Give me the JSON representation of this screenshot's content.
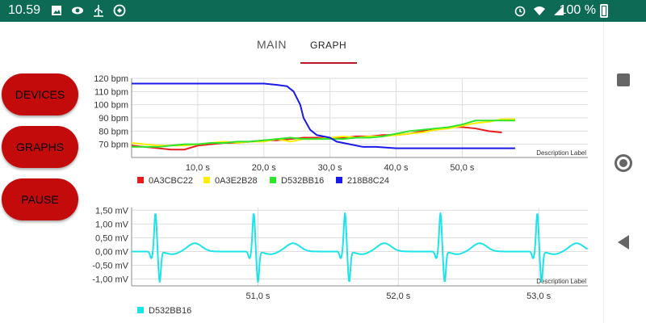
{
  "status_bar": {
    "time": "10.59",
    "battery": "100 %",
    "left_icons": [
      "image-icon",
      "eye-icon",
      "usb-icon",
      "vpn-icon"
    ],
    "right_icons": [
      "alarm-icon",
      "wifi-icon",
      "signal-icon",
      "battery-icon"
    ]
  },
  "tabs": [
    {
      "label": "MAIN",
      "selected": false
    },
    {
      "label": "GRAPH",
      "selected": true
    }
  ],
  "buttons": {
    "devices": "DEVICES",
    "graphs": "GRAPHS",
    "pause": "PAUSE"
  },
  "colors": {
    "status_bar": "#0d6b55",
    "button": "#c40b0b",
    "tab_indicator": "#c0182b"
  },
  "chart_data": [
    {
      "type": "line",
      "description_label": "Description Label",
      "xlim": [
        0,
        69
      ],
      "ylim": [
        60,
        120
      ],
      "x_ticks": [
        10,
        20,
        30,
        40,
        50
      ],
      "x_tick_labels": [
        "10,0 s",
        "20,0 s",
        "30,0 s",
        "40,0 s",
        "50,0 s"
      ],
      "y_ticks": [
        70,
        80,
        90,
        100,
        110,
        120
      ],
      "y_tick_labels": [
        "70 bpm",
        "80 bpm",
        "90 bpm",
        "100 bpm",
        "110 bpm",
        "120 bpm"
      ],
      "legend_position": "bottom-left",
      "series": [
        {
          "name": "0A3CBC22",
          "color": "#e81c1c",
          "x": [
            0,
            2,
            4,
            6,
            8,
            10,
            12,
            14,
            16,
            18,
            20,
            22,
            24,
            26,
            28,
            30,
            32,
            34,
            36,
            38,
            40,
            42,
            44,
            46,
            48,
            50,
            52,
            54,
            56
          ],
          "y": [
            69,
            68,
            67,
            66,
            66,
            69,
            70,
            71,
            71,
            72,
            73,
            73,
            74,
            75,
            75,
            75,
            75,
            76,
            76,
            77,
            77,
            78,
            80,
            81,
            83,
            83,
            82,
            80,
            79
          ]
        },
        {
          "name": "0A3E2B28",
          "color": "#ffee00",
          "x": [
            0,
            2,
            4,
            6,
            8,
            10,
            12,
            14,
            16,
            18,
            20,
            22,
            24,
            26,
            28,
            30,
            32,
            34,
            36,
            38,
            40,
            42,
            44,
            46,
            48,
            50,
            52,
            54,
            56,
            58
          ],
          "y": [
            71,
            70,
            69,
            69,
            69,
            70,
            71,
            72,
            71,
            72,
            72,
            74,
            72,
            74,
            74,
            75,
            76,
            75,
            76,
            76,
            77,
            78,
            79,
            81,
            82,
            84,
            86,
            87,
            89,
            89
          ]
        },
        {
          "name": "D532BB16",
          "color": "#2ee52e",
          "x": [
            0,
            2,
            4,
            6,
            8,
            10,
            12,
            14,
            16,
            18,
            20,
            22,
            24,
            26,
            28,
            30,
            32,
            34,
            36,
            38,
            40,
            42,
            44,
            46,
            48,
            50,
            52,
            54,
            56,
            58
          ],
          "y": [
            68,
            68,
            68,
            69,
            70,
            70,
            71,
            71,
            72,
            72,
            73,
            74,
            75,
            74,
            74,
            74,
            74,
            75,
            75,
            76,
            78,
            80,
            81,
            82,
            83,
            85,
            88,
            88,
            88,
            88
          ]
        },
        {
          "name": "218B8C24",
          "color": "#1a1ae8",
          "x": [
            0,
            5,
            10,
            15,
            18,
            20,
            22,
            23.5,
            24.5,
            25.5,
            26,
            27,
            28,
            29,
            30,
            31,
            33,
            35,
            37,
            40,
            45,
            50,
            55,
            58
          ],
          "y": [
            116,
            116,
            116,
            116,
            116,
            116,
            115,
            114,
            110,
            100,
            90,
            81,
            77,
            76,
            75,
            72,
            70,
            68,
            68,
            67,
            67,
            67,
            67,
            67
          ]
        }
      ]
    },
    {
      "type": "line",
      "description_label": "Description Label",
      "xlim": [
        50.1,
        53.35
      ],
      "ylim": [
        -1.25,
        1.6
      ],
      "x_ticks": [
        51.0,
        52.0,
        53.0
      ],
      "x_tick_labels": [
        "51,0 s",
        "52,0 s",
        "53,0 s"
      ],
      "y_ticks": [
        -1.0,
        -0.5,
        0.0,
        0.5,
        1.0,
        1.5
      ],
      "y_tick_labels": [
        "-1,00 mV",
        "-0,50 mV",
        "0,00 mV",
        "0,50 mV",
        "1,00 mV",
        "1,50 mV"
      ],
      "legend_position": "bottom-left",
      "series": [
        {
          "name": "D532BB16",
          "color": "#1ee3e8",
          "beats_at": [
            50.27,
            50.97,
            51.62,
            52.3,
            52.99
          ],
          "baseline": 0.0,
          "r_peak": 1.4,
          "s_trough": -1.1,
          "t_wave": 0.3
        }
      ]
    }
  ]
}
